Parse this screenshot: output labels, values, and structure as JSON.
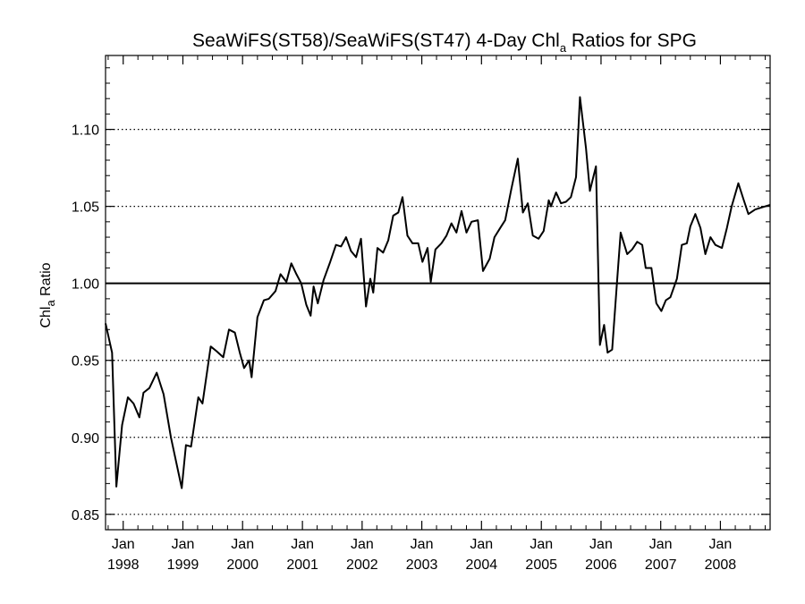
{
  "chart_data": {
    "type": "line",
    "title": {
      "main": "SeaWiFS(ST58)/SeaWiFS(ST47) 4-Day Chl",
      "sub": "a",
      "tail": " Ratios for SPG"
    },
    "ylabel": {
      "main": "Chl",
      "sub": "a",
      "tail": " Ratio"
    },
    "xlabel": "",
    "xlim": [
      "1997-09-15",
      "2008-10-31"
    ],
    "ylim": [
      0.84,
      1.148
    ],
    "x_ticks": [
      {
        "date": "1998-01-01",
        "line1": "Jan",
        "line2": "1998"
      },
      {
        "date": "1999-01-01",
        "line1": "Jan",
        "line2": "1999"
      },
      {
        "date": "2000-01-01",
        "line1": "Jan",
        "line2": "2000"
      },
      {
        "date": "2001-01-01",
        "line1": "Jan",
        "line2": "2001"
      },
      {
        "date": "2002-01-01",
        "line1": "Jan",
        "line2": "2002"
      },
      {
        "date": "2003-01-01",
        "line1": "Jan",
        "line2": "2003"
      },
      {
        "date": "2004-01-01",
        "line1": "Jan",
        "line2": "2004"
      },
      {
        "date": "2005-01-01",
        "line1": "Jan",
        "line2": "2005"
      },
      {
        "date": "2006-01-01",
        "line1": "Jan",
        "line2": "2006"
      },
      {
        "date": "2007-01-01",
        "line1": "Jan",
        "line2": "2007"
      },
      {
        "date": "2008-01-01",
        "line1": "Jan",
        "line2": "2008"
      }
    ],
    "y_ticks": [
      {
        "value": 0.85,
        "label": "0.85"
      },
      {
        "value": 0.9,
        "label": "0.90"
      },
      {
        "value": 0.95,
        "label": "0.95"
      },
      {
        "value": 1.0,
        "label": "1.00"
      },
      {
        "value": 1.05,
        "label": "1.05"
      },
      {
        "value": 1.1,
        "label": "1.10"
      }
    ],
    "grid": "horizontal dotted at major y ticks",
    "reference_line": 1.0,
    "series": [
      {
        "color": "#000000",
        "points": [
          [
            "1997-09-15",
            0.974
          ],
          [
            "1997-10-25",
            0.955
          ],
          [
            "1997-11-20",
            0.868
          ],
          [
            "1997-12-25",
            0.908
          ],
          [
            "1998-01-30",
            0.926
          ],
          [
            "1998-03-05",
            0.922
          ],
          [
            "1998-04-10",
            0.913
          ],
          [
            "1998-05-05",
            0.929
          ],
          [
            "1998-06-10",
            0.932
          ],
          [
            "1998-07-25",
            0.942
          ],
          [
            "1998-09-05",
            0.928
          ],
          [
            "1998-10-20",
            0.9
          ],
          [
            "1998-12-25",
            0.867
          ],
          [
            "1999-01-20",
            0.895
          ],
          [
            "1999-02-20",
            0.894
          ],
          [
            "1999-04-05",
            0.926
          ],
          [
            "1999-05-01",
            0.922
          ],
          [
            "1999-06-20",
            0.959
          ],
          [
            "1999-07-25",
            0.956
          ],
          [
            "1999-09-05",
            0.952
          ],
          [
            "1999-10-10",
            0.97
          ],
          [
            "1999-11-15",
            0.968
          ],
          [
            "1999-12-15",
            0.955
          ],
          [
            "2000-01-10",
            0.945
          ],
          [
            "2000-02-10",
            0.95
          ],
          [
            "2000-02-25",
            0.939
          ],
          [
            "2000-04-01",
            0.978
          ],
          [
            "2000-05-10",
            0.989
          ],
          [
            "2000-06-10",
            0.99
          ],
          [
            "2000-07-20",
            0.995
          ],
          [
            "2000-08-20",
            1.006
          ],
          [
            "2000-09-25",
            1.001
          ],
          [
            "2000-10-25",
            1.013
          ],
          [
            "2000-11-25",
            1.006
          ],
          [
            "2000-12-25",
            1.0
          ],
          [
            "2001-01-25",
            0.986
          ],
          [
            "2001-02-20",
            0.979
          ],
          [
            "2001-03-10",
            0.998
          ],
          [
            "2001-04-05",
            0.987
          ],
          [
            "2001-05-10",
            1.002
          ],
          [
            "2001-06-20",
            1.014
          ],
          [
            "2001-07-25",
            1.025
          ],
          [
            "2001-08-25",
            1.024
          ],
          [
            "2001-09-25",
            1.03
          ],
          [
            "2001-10-25",
            1.021
          ],
          [
            "2001-11-25",
            1.017
          ],
          [
            "2001-12-25",
            1.029
          ],
          [
            "2002-01-25",
            0.985
          ],
          [
            "2002-02-20",
            1.003
          ],
          [
            "2002-03-10",
            0.994
          ],
          [
            "2002-04-05",
            1.023
          ],
          [
            "2002-05-10",
            1.02
          ],
          [
            "2002-06-10",
            1.028
          ],
          [
            "2002-07-10",
            1.044
          ],
          [
            "2002-08-10",
            1.046
          ],
          [
            "2002-09-05",
            1.056
          ],
          [
            "2002-10-05",
            1.031
          ],
          [
            "2002-11-05",
            1.026
          ],
          [
            "2002-12-10",
            1.026
          ],
          [
            "2003-01-05",
            1.014
          ],
          [
            "2003-02-05",
            1.023
          ],
          [
            "2003-02-25",
            1.001
          ],
          [
            "2003-03-25",
            1.022
          ],
          [
            "2003-05-01",
            1.026
          ],
          [
            "2003-06-01",
            1.031
          ],
          [
            "2003-07-01",
            1.039
          ],
          [
            "2003-08-01",
            1.033
          ],
          [
            "2003-09-01",
            1.047
          ],
          [
            "2003-10-01",
            1.033
          ],
          [
            "2003-11-01",
            1.04
          ],
          [
            "2003-12-10",
            1.041
          ],
          [
            "2004-01-10",
            1.008
          ],
          [
            "2004-02-20",
            1.016
          ],
          [
            "2004-03-20",
            1.03
          ],
          [
            "2004-04-25",
            1.036
          ],
          [
            "2004-05-25",
            1.041
          ],
          [
            "2004-07-01",
            1.061
          ],
          [
            "2004-08-10",
            1.081
          ],
          [
            "2004-09-10",
            1.046
          ],
          [
            "2004-10-10",
            1.052
          ],
          [
            "2004-11-10",
            1.031
          ],
          [
            "2004-12-15",
            1.029
          ],
          [
            "2005-01-15",
            1.034
          ],
          [
            "2005-02-15",
            1.054
          ],
          [
            "2005-03-01",
            1.05
          ],
          [
            "2005-04-01",
            1.059
          ],
          [
            "2005-05-01",
            1.052
          ],
          [
            "2005-06-01",
            1.053
          ],
          [
            "2005-07-01",
            1.056
          ],
          [
            "2005-08-01",
            1.069
          ],
          [
            "2005-08-25",
            1.121
          ],
          [
            "2005-10-01",
            1.088
          ],
          [
            "2005-10-25",
            1.06
          ],
          [
            "2005-12-01",
            1.076
          ],
          [
            "2005-12-25",
            0.96
          ],
          [
            "2006-01-20",
            0.973
          ],
          [
            "2006-02-10",
            0.955
          ],
          [
            "2006-03-10",
            0.957
          ],
          [
            "2006-04-10",
            1.003
          ],
          [
            "2006-05-01",
            1.033
          ],
          [
            "2006-06-10",
            1.019
          ],
          [
            "2006-07-10",
            1.022
          ],
          [
            "2006-08-10",
            1.027
          ],
          [
            "2006-09-10",
            1.025
          ],
          [
            "2006-10-01",
            1.01
          ],
          [
            "2006-11-05",
            1.01
          ],
          [
            "2006-12-05",
            0.987
          ],
          [
            "2007-01-05",
            0.982
          ],
          [
            "2007-02-01",
            0.989
          ],
          [
            "2007-03-01",
            0.991
          ],
          [
            "2007-04-10",
            1.003
          ],
          [
            "2007-05-10",
            1.025
          ],
          [
            "2007-06-10",
            1.026
          ],
          [
            "2007-07-01",
            1.037
          ],
          [
            "2007-08-01",
            1.045
          ],
          [
            "2007-09-01",
            1.036
          ],
          [
            "2007-10-01",
            1.019
          ],
          [
            "2007-11-01",
            1.03
          ],
          [
            "2007-12-01",
            1.025
          ],
          [
            "2008-01-10",
            1.023
          ],
          [
            "2008-02-10",
            1.036
          ],
          [
            "2008-03-10",
            1.05
          ],
          [
            "2008-04-20",
            1.065
          ],
          [
            "2008-05-20",
            1.055
          ],
          [
            "2008-06-20",
            1.045
          ],
          [
            "2008-08-01",
            1.048
          ],
          [
            "2008-10-31",
            1.051
          ]
        ]
      }
    ]
  }
}
